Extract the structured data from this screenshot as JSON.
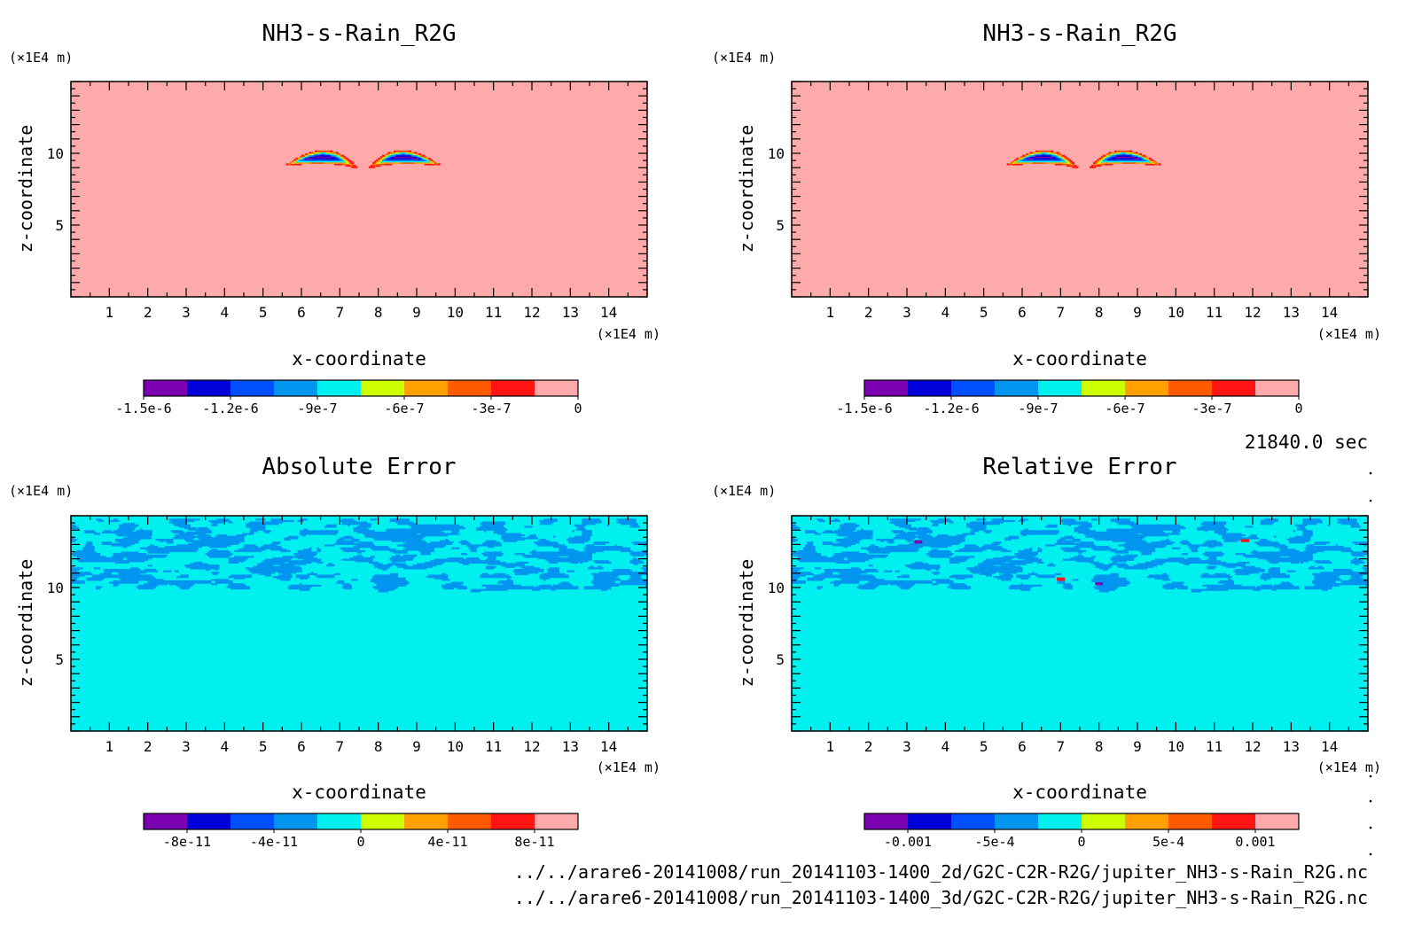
{
  "time_label": "21840.0 sec",
  "file_paths": [
    "../../arare6-20141008/run_20141103-1400_2d/G2C-C2R-R2G/jupiter_NH3-s-Rain_R2G.nc",
    "../../arare6-20141008/run_20141103-1400_3d/G2C-C2R-R2G/jupiter_NH3-s-Rain_R2G.nc"
  ],
  "palette": [
    "#7a00b0",
    "#0000d8",
    "#0050ff",
    "#0096f0",
    "#00f0f0",
    "#cdff00",
    "#ffa000",
    "#ff5a00",
    "#ff1414",
    "#ffaaaa"
  ],
  "chart_data": [
    {
      "type": "heatmap",
      "title": "NH3-s-Rain_R2G",
      "xlabel": "x-coordinate",
      "ylabel": "z-coordinate",
      "x_unit": "(×1E4 m)",
      "y_unit": "(×1E4 m)",
      "xlim": [
        0,
        15
      ],
      "ylim": [
        0,
        15
      ],
      "x_ticks": [
        "1",
        "2",
        "3",
        "4",
        "5",
        "6",
        "7",
        "8",
        "9",
        "10",
        "11",
        "12",
        "13",
        "14"
      ],
      "y_ticks": [
        "5",
        "10"
      ],
      "colorbar_levels": [
        -1.5e-06,
        -1.35e-06,
        -1.2e-06,
        -1.05e-06,
        -9e-07,
        -7.5e-07,
        -6e-07,
        -4.5e-07,
        -3e-07,
        -1.5e-07,
        0
      ],
      "colorbar_labels": [
        "-1.5e-6",
        "-1.2e-6",
        "-9e-7",
        "-6e-7",
        "-3e-7",
        "0"
      ],
      "background_value": 0,
      "features": [
        {
          "kind": "cloud-arms",
          "x_range": [
            5.5,
            9.7
          ],
          "z_center": 9.1,
          "min_value": -1.4e-06
        }
      ]
    },
    {
      "type": "heatmap",
      "title": "NH3-s-Rain_R2G",
      "xlabel": "x-coordinate",
      "ylabel": "z-coordinate",
      "x_unit": "(×1E4 m)",
      "y_unit": "(×1E4 m)",
      "xlim": [
        0,
        15
      ],
      "ylim": [
        0,
        15
      ],
      "x_ticks": [
        "1",
        "2",
        "3",
        "4",
        "5",
        "6",
        "7",
        "8",
        "9",
        "10",
        "11",
        "12",
        "13",
        "14"
      ],
      "y_ticks": [
        "5",
        "10"
      ],
      "colorbar_levels": [
        -1.5e-06,
        -1.35e-06,
        -1.2e-06,
        -1.05e-06,
        -9e-07,
        -7.5e-07,
        -6e-07,
        -4.5e-07,
        -3e-07,
        -1.5e-07,
        0
      ],
      "colorbar_labels": [
        "-1.5e-6",
        "-1.2e-6",
        "-9e-7",
        "-6e-7",
        "-3e-7",
        "0"
      ],
      "background_value": 0,
      "features": [
        {
          "kind": "cloud-arms",
          "x_range": [
            5.5,
            9.7
          ],
          "z_center": 9.1,
          "min_value": -1.4e-06
        }
      ]
    },
    {
      "type": "heatmap",
      "title": "Absolute Error",
      "xlabel": "x-coordinate",
      "ylabel": "z-coordinate",
      "x_unit": "(×1E4 m)",
      "y_unit": "(×1E4 m)",
      "xlim": [
        0,
        15
      ],
      "ylim": [
        0,
        15
      ],
      "x_ticks": [
        "1",
        "2",
        "3",
        "4",
        "5",
        "6",
        "7",
        "8",
        "9",
        "10",
        "11",
        "12",
        "13",
        "14"
      ],
      "y_ticks": [
        "5",
        "10"
      ],
      "colorbar_levels": [
        -1e-10,
        -8e-11,
        -6e-11,
        -4e-11,
        -2e-11,
        0,
        2e-11,
        4e-11,
        6e-11,
        8e-11,
        1e-10
      ],
      "colorbar_labels": [
        "-8e-11",
        "-4e-11",
        "0",
        "4e-11",
        "8e-11"
      ],
      "background_value": 0,
      "features": [
        {
          "kind": "noise-band",
          "z_range": [
            9,
            14.8
          ],
          "value_range": [
            -2e-11,
            0
          ]
        }
      ]
    },
    {
      "type": "heatmap",
      "title": "Relative Error",
      "xlabel": "x-coordinate",
      "ylabel": "z-coordinate",
      "x_unit": "(×1E4 m)",
      "y_unit": "(×1E4 m)",
      "xlim": [
        0,
        15
      ],
      "ylim": [
        0,
        15
      ],
      "x_ticks": [
        "1",
        "2",
        "3",
        "4",
        "5",
        "6",
        "7",
        "8",
        "9",
        "10",
        "11",
        "12",
        "13",
        "14"
      ],
      "y_ticks": [
        "5",
        "10"
      ],
      "colorbar_levels": [
        -0.00125,
        -0.001,
        -0.00075,
        -0.0005,
        -0.00025,
        0,
        0.00025,
        0.0005,
        0.00075,
        0.001,
        0.00125
      ],
      "colorbar_labels": [
        "-0.001",
        "-5e-4",
        "0",
        "5e-4",
        "0.001"
      ],
      "background_value": 0,
      "features": [
        {
          "kind": "noise-band",
          "z_range": [
            9,
            14.8
          ],
          "value_range": [
            -0.00025,
            0
          ]
        },
        {
          "kind": "spots",
          "points": [
            [
              3.3,
              13.2,
              -0.001
            ],
            [
              7.0,
              10.6,
              0.0008
            ],
            [
              8.0,
              10.3,
              -0.0011
            ],
            [
              11.8,
              13.3,
              0.001
            ]
          ]
        }
      ]
    }
  ]
}
